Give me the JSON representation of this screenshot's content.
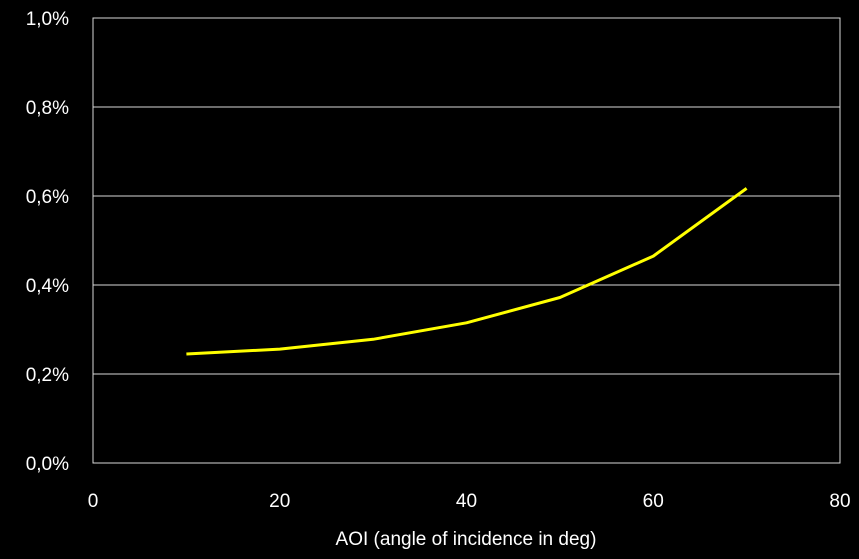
{
  "chart_data": {
    "type": "line",
    "title": "",
    "xlabel": "AOI (angle of incidence in deg)",
    "ylabel": "",
    "xlim": [
      0,
      80
    ],
    "ylim": [
      0,
      1.0
    ],
    "x_ticks": [
      0,
      20,
      40,
      60,
      80
    ],
    "y_ticks": [
      0.0,
      0.2,
      0.4,
      0.6,
      0.8,
      1.0
    ],
    "x_tick_labels": [
      "0",
      "20",
      "40",
      "60",
      "80"
    ],
    "y_tick_labels": [
      "0,0%",
      "0,2%",
      "0,4%",
      "0,6%",
      "0,8%",
      "1,0%"
    ],
    "grid": true,
    "legend": "none",
    "series": [
      {
        "x": [
          10,
          20,
          30,
          40,
          50,
          60,
          70
        ],
        "y": [
          0.245,
          0.256,
          0.278,
          0.315,
          0.372,
          0.465,
          0.617
        ],
        "color": "#ffff00"
      }
    ],
    "colors": {
      "background": "#000000",
      "grid": "#d9d9d9",
      "text": "#ffffff",
      "line": "#ffff00"
    }
  }
}
